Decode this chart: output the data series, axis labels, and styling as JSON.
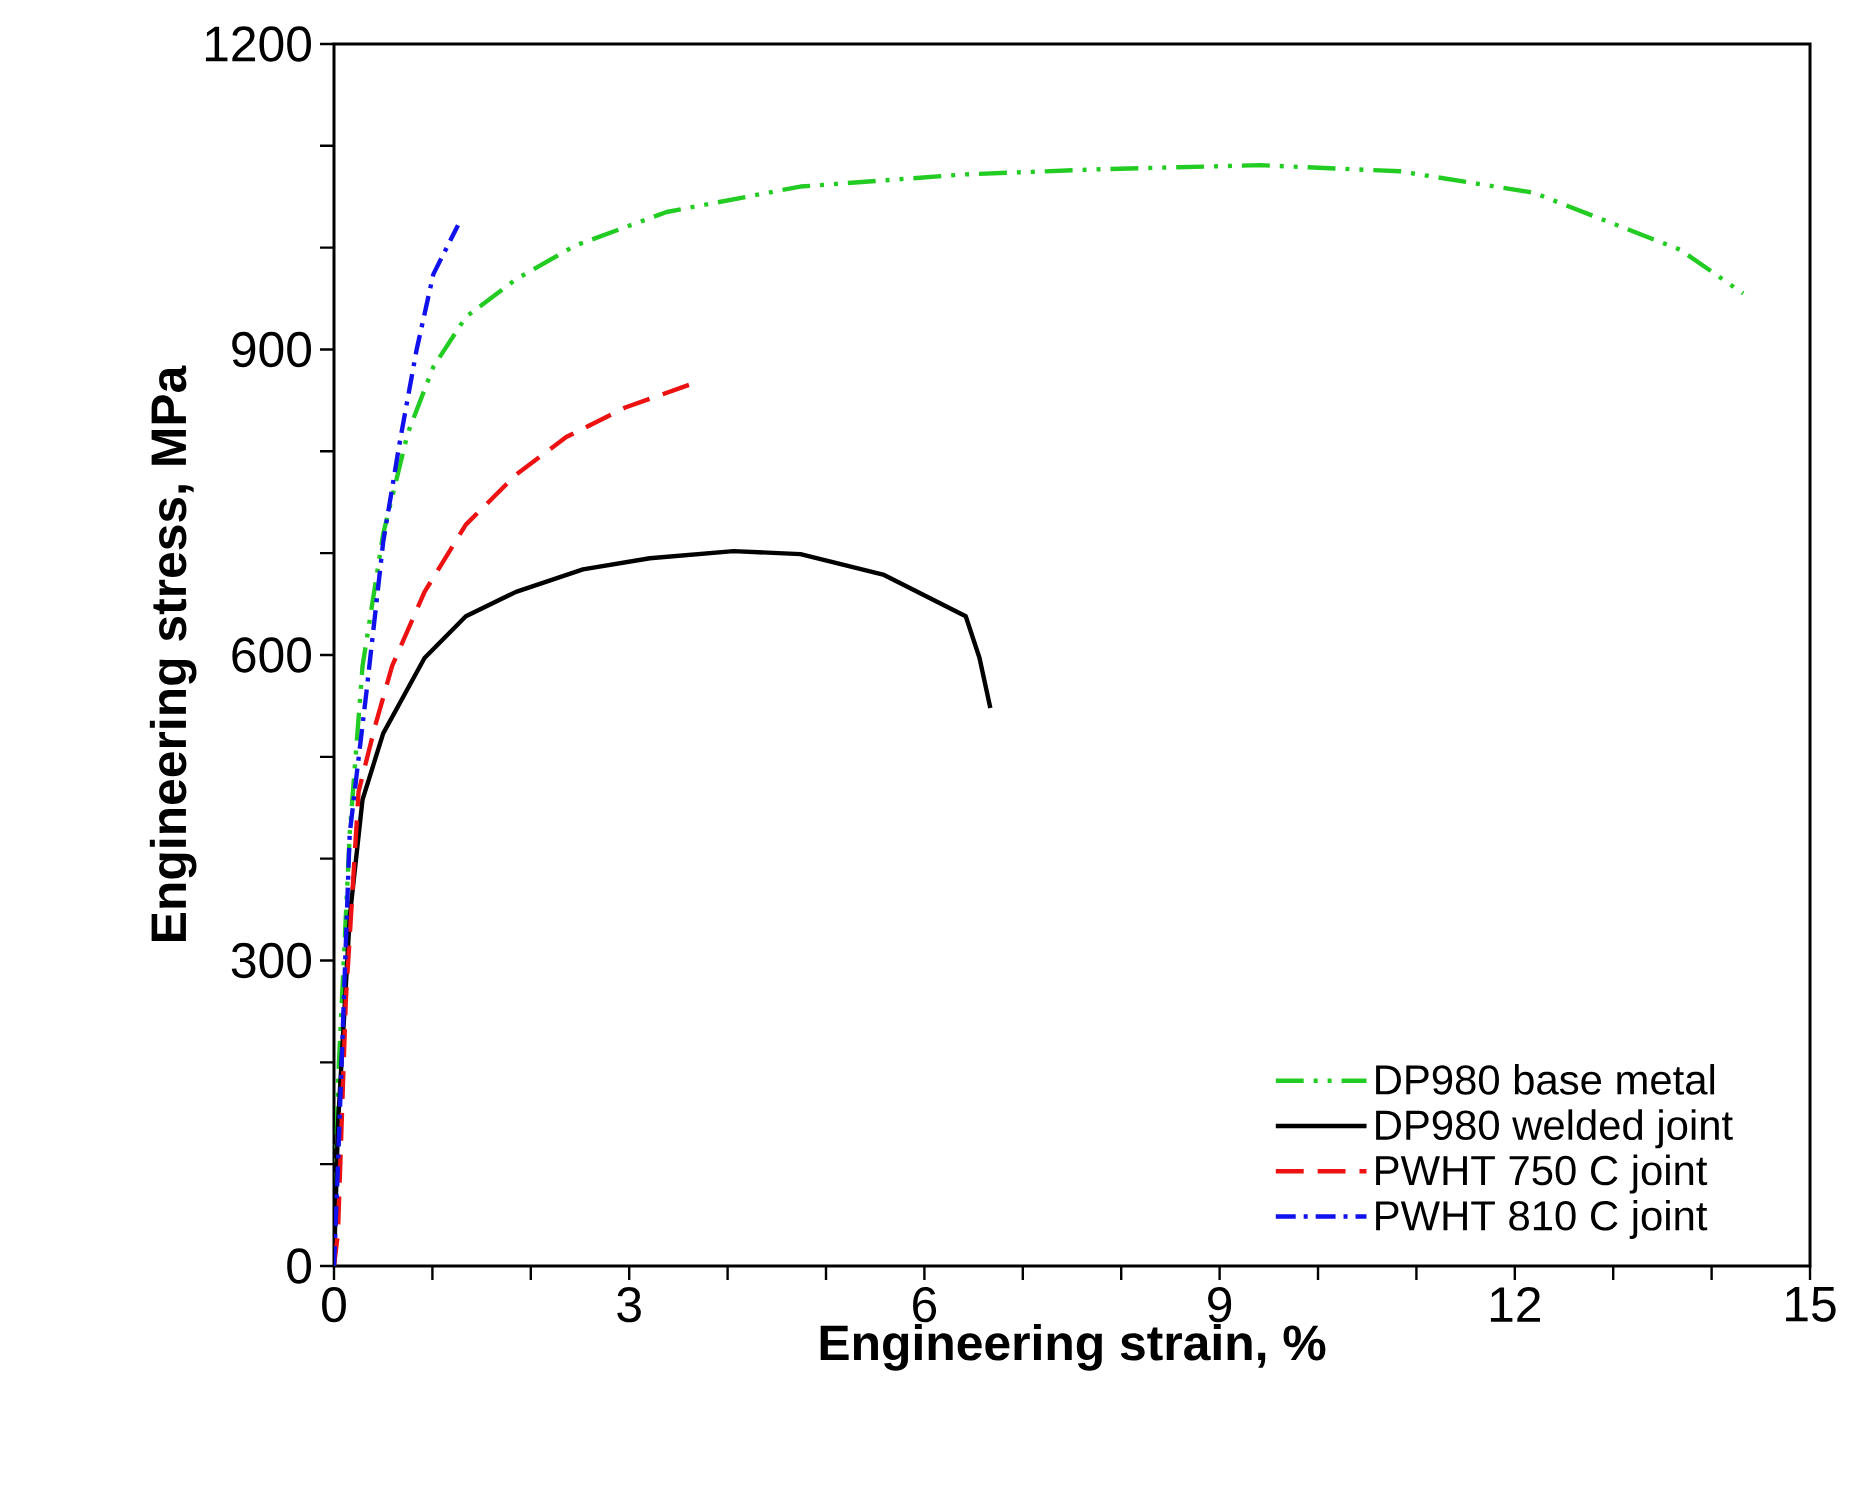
{
  "chart_data": {
    "type": "line",
    "xlabel": "Engineering strain, %",
    "ylabel": "Engineering stress, MPa",
    "xlim": [
      0,
      15
    ],
    "ylim": [
      0,
      1200
    ],
    "xticks": [
      0,
      {
        "value": 1,
        "label": null
      },
      {
        "value": 2,
        "label": null
      },
      3,
      {
        "value": 4,
        "label": null
      },
      {
        "value": 5,
        "label": null
      },
      6,
      {
        "value": 7,
        "label": null
      },
      {
        "value": 8,
        "label": null
      },
      9,
      {
        "value": 10,
        "label": null
      },
      {
        "value": 11,
        "label": null
      },
      12,
      {
        "value": 13,
        "label": null
      },
      {
        "value": 14,
        "label": null
      },
      15
    ],
    "yticks": [
      0,
      {
        "value": 100,
        "label": null
      },
      {
        "value": 200,
        "label": null
      },
      300,
      {
        "value": 400,
        "label": null
      },
      {
        "value": 500,
        "label": null
      },
      600,
      {
        "value": 700,
        "label": null
      },
      {
        "value": 800,
        "label": null
      },
      900,
      {
        "value": 1000,
        "label": null
      },
      {
        "value": 1100,
        "label": null
      },
      1200
    ],
    "grid": false,
    "legend": "bottom right",
    "marker": "none",
    "series": [
      {
        "name": "DP980 base metal",
        "color": "#22cc22",
        "line_style": "dashdotdotted",
        "x": [
          0,
          0.04,
          0.16,
          0.29,
          0.5,
          0.75,
          1.01,
          1.34,
          1.85,
          2.45,
          3.38,
          4.74,
          6.42,
          7.78,
          9.41,
          10.83,
          12.19,
          13.68,
          14.32
        ],
        "values": [
          0,
          179,
          425,
          589,
          719,
          818,
          883,
          932,
          969,
          1002,
          1035,
          1060,
          1072,
          1077,
          1081,
          1075,
          1054,
          998,
          955
        ]
      },
      {
        "name": "DP980 welded joint",
        "color": "#000000",
        "line_style": "solid",
        "x": [
          0,
          0.04,
          0.16,
          0.29,
          0.5,
          0.92,
          1.34,
          1.85,
          2.53,
          3.21,
          4.06,
          4.74,
          5.58,
          6.42,
          6.56,
          6.67
        ],
        "values": [
          0,
          138,
          343,
          458,
          523,
          597,
          638,
          662,
          684,
          695,
          702,
          699,
          679,
          638,
          597,
          548
        ]
      },
      {
        "name": "PWHT 750 C joint",
        "color": "#ee1111",
        "line_style": "dashed",
        "x": [
          0,
          0.04,
          0.12,
          0.25,
          0.42,
          0.59,
          0.92,
          1.34,
          1.85,
          2.36,
          2.96,
          3.63
        ],
        "values": [
          0,
          32,
          261,
          466,
          531,
          589,
          662,
          728,
          777,
          814,
          843,
          866
        ]
      },
      {
        "name": "PWHT 810 C joint",
        "color": "#1111ee",
        "line_style": "dashdotted",
        "x": [
          0,
          0.04,
          0.16,
          0.33,
          0.5,
          0.67,
          0.84,
          1.01,
          1.26
        ],
        "values": [
          0,
          98,
          425,
          564,
          711,
          810,
          900,
          974,
          1022
        ]
      }
    ]
  }
}
